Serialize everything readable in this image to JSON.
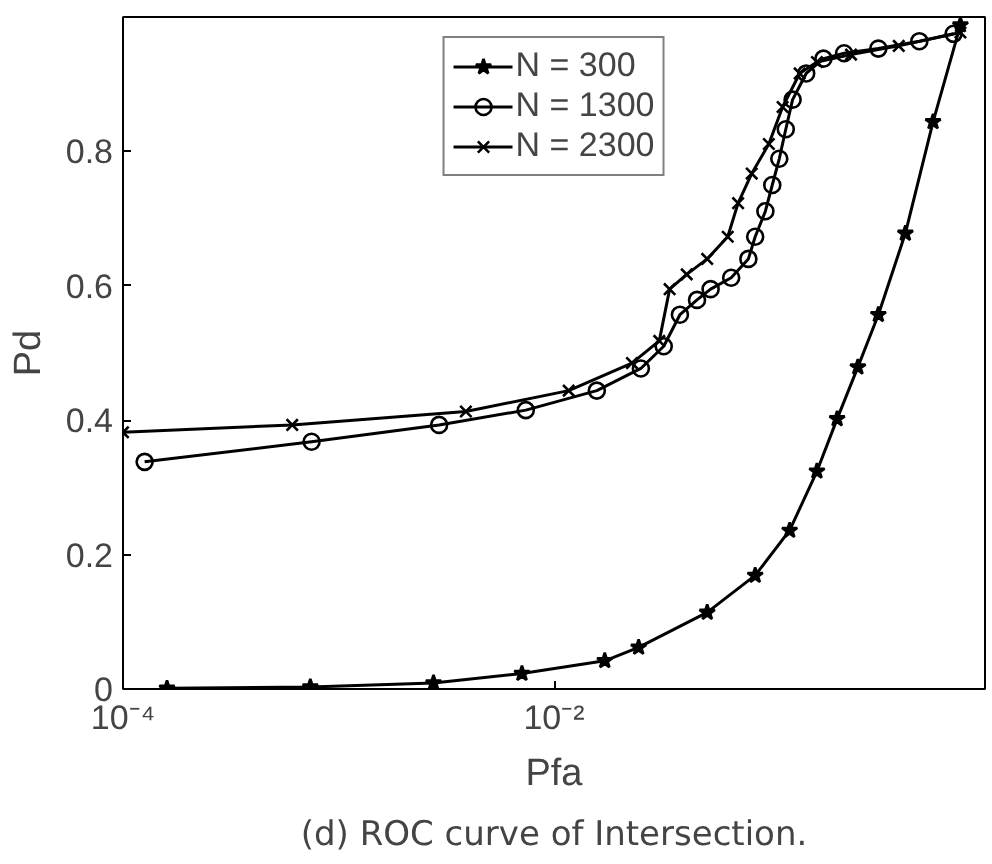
{
  "chart_data": {
    "type": "line",
    "title": "(d) ROC curve of Intersection.",
    "xlabel": "Pfa",
    "ylabel": "Pd",
    "log": "x",
    "xlim": [
      0.0001,
      1
    ],
    "xticks": [
      {
        "value": 0.0001,
        "label": "10⁻⁴"
      },
      {
        "value": 0.01,
        "label": "10⁻²"
      }
    ],
    "ylim": [
      0,
      1
    ],
    "yticks": [
      0,
      0.2,
      0.4,
      0.6,
      0.8
    ],
    "grid": false,
    "legend": "top center",
    "line_style": "solid",
    "series": [
      {
        "name": "N = 300",
        "color": "#000000",
        "marker": "star",
        "x": [
          0.00016,
          0.00074,
          0.00276,
          0.0071,
          0.0172,
          0.0247,
          0.0514,
          0.0858,
          0.124,
          0.166,
          0.206,
          0.257,
          0.32,
          0.427,
          0.574,
          0.769
        ],
        "values": [
          0.001,
          0.003,
          0.009,
          0.023,
          0.042,
          0.062,
          0.114,
          0.169,
          0.236,
          0.324,
          0.402,
          0.479,
          0.557,
          0.678,
          0.844,
          0.988
        ]
      },
      {
        "name": "N = 1300",
        "color": "#000000",
        "marker": "circle",
        "x": [
          0.000126,
          0.00075,
          0.00293,
          0.0074,
          0.0158,
          0.0253,
          0.0323,
          0.0384,
          0.0461,
          0.0533,
          0.0664,
          0.0798,
          0.0858,
          0.0957,
          0.103,
          0.111,
          0.119,
          0.128,
          0.148,
          0.178,
          0.222,
          0.32,
          0.496,
          0.715
        ],
        "values": [
          0.338,
          0.368,
          0.393,
          0.415,
          0.444,
          0.477,
          0.51,
          0.557,
          0.579,
          0.595,
          0.612,
          0.64,
          0.673,
          0.711,
          0.75,
          0.789,
          0.833,
          0.877,
          0.916,
          0.938,
          0.946,
          0.953,
          0.964,
          0.975
        ]
      },
      {
        "name": "N = 2300",
        "color": "#000000",
        "marker": "cross",
        "x": [
          0.0001,
          0.00061,
          0.0039,
          0.0117,
          0.023,
          0.0308,
          0.0344,
          0.0413,
          0.0514,
          0.064,
          0.0715,
          0.0827,
          0.0993,
          0.115,
          0.138,
          0.166,
          0.239,
          0.398,
          0.769
        ],
        "values": [
          0.382,
          0.393,
          0.413,
          0.444,
          0.485,
          0.518,
          0.595,
          0.617,
          0.64,
          0.673,
          0.723,
          0.767,
          0.811,
          0.866,
          0.916,
          0.933,
          0.944,
          0.957,
          0.977
        ]
      }
    ]
  }
}
